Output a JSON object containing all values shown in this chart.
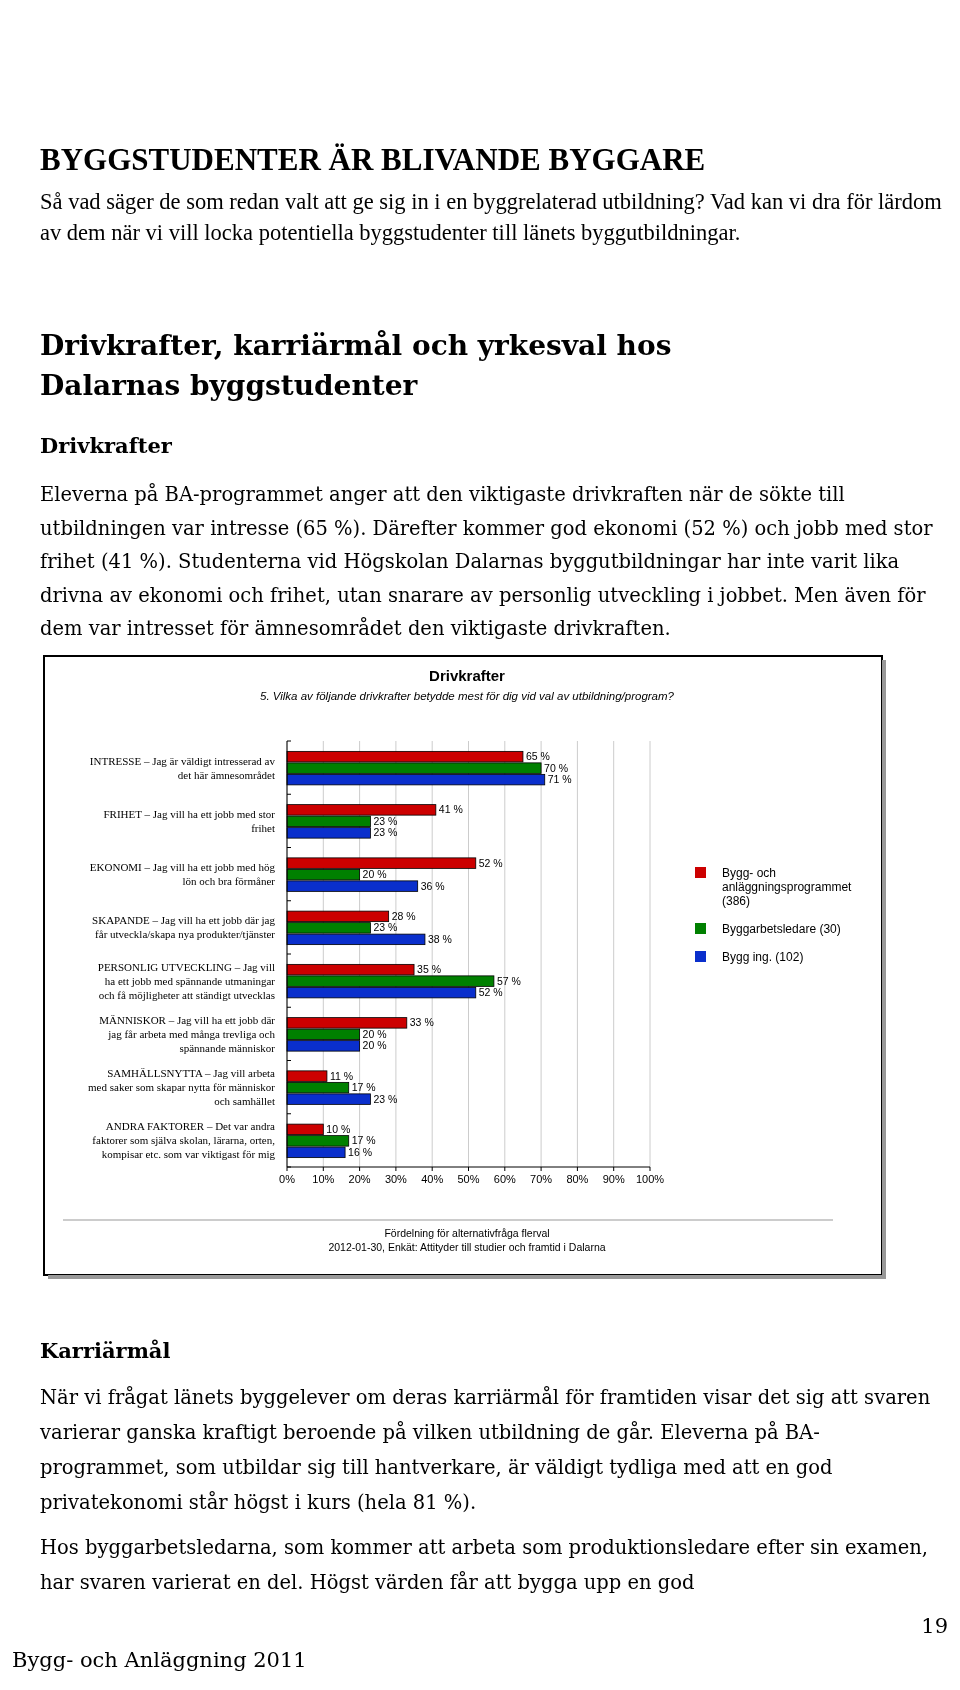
{
  "chart_data": {
    "type": "bar",
    "orientation": "horizontal",
    "title": "Drivkrafter",
    "subtitle": "5. Vilka av följande drivkrafter betydde mest för dig vid val av utbildning/program?",
    "categories": [
      "INTRESSE – Jag är väldigt intresserad av det här ämnesområdet",
      "FRIHET – Jag vill ha ett jobb med stor frihet",
      "EKONOMI – Jag vill ha ett jobb med hög lön och bra förmåner",
      "SKAPANDE – Jag vill ha ett jobb där jag får utveckla/skapa nya produkter/tjänster",
      "PERSONLIG UTVECKLING – Jag vill ha ett jobb med spännande utmaningar och få möjligheter att ständigt utvecklas",
      "MÄNNISKOR – Jag vill ha ett jobb där jag får arbeta med många trevliga och spännande människor",
      "SAMHÄLLSNYTTA – Jag vill arbeta med saker som skapar nytta för människor och samhället",
      "ANDRA FAKTORER – Det var andra faktorer som själva skolan, lärarna, orten, kompisar etc. som var viktigast för mig"
    ],
    "series": [
      {
        "name": "Bygg- och anläggningsprogrammet (386)",
        "color": "#cc0000",
        "values": [
          65,
          41,
          52,
          28,
          35,
          33,
          11,
          10
        ],
        "value_labels": [
          "65 %",
          "41 %",
          "52 %",
          "28 %",
          "35 %",
          "33 %",
          "11 %",
          "10 %"
        ]
      },
      {
        "name": "Byggarbetsledare (30)",
        "color": "#008000",
        "values": [
          70,
          23,
          20,
          23,
          57,
          20,
          17,
          17
        ],
        "value_labels": [
          "70 %",
          "23 %",
          "20 %",
          "23 %",
          "57 %",
          "20 %",
          "17 %",
          "17 %"
        ]
      },
      {
        "name": "Bygg ing. (102)",
        "color": "#0a2fcc",
        "values": [
          71,
          23,
          36,
          38,
          52,
          20,
          23,
          16
        ],
        "value_labels": [
          "71 %",
          "23 %",
          "36 %",
          "38 %",
          "52 %",
          "20 %",
          "23 %",
          "16 %"
        ]
      }
    ],
    "xlim": [
      0,
      100
    ],
    "xticks": [
      {
        "value": 0,
        "label": "0%"
      },
      {
        "value": 10,
        "label": "10%"
      },
      {
        "value": 20,
        "label": "20%"
      },
      {
        "value": 30,
        "label": "30%"
      },
      {
        "value": 40,
        "label": "40%"
      },
      {
        "value": 50,
        "label": "50%"
      },
      {
        "value": 60,
        "label": "60%"
      },
      {
        "value": 70,
        "label": "70%"
      },
      {
        "value": 80,
        "label": "80%"
      },
      {
        "value": 90,
        "label": "90%"
      },
      {
        "value": 100,
        "label": "100%"
      }
    ],
    "grid": "x",
    "legend": "right",
    "annotations": [
      "BYGGSTUDENTER ÄR BLIVANDE BYGGARE",
      "Så vad säger de som redan valt att ge sig in i en byggrelaterad utbildning? Vad kan vi dra för lärdom av dem när vi vill locka potentiella byggstudenter till länets byggutbildningar.",
      "Drivkrafter, karriärmål och yrkesval hos Dalarnas byggstudenter",
      "Drivkrafter",
      "Eleverna på BA-programmet anger att den viktigaste drivkraften när de sökte till utbildningen var intresse (65 %). Därefter kommer god ekonomi (52 %) och jobb med stor frihet (41 %). Studenterna vid Högskolan Dalarnas byggutbildningar har inte varit lika drivna av ekonomi och frihet, utan snarare av personlig utveckling i jobbet. Men även för dem var intresset för ämnesområdet den viktigaste drivkraften.",
      "Fördelning för alternativfråga flerval",
      "2012-01-30, Enkät: Attityder till studier och framtid i Dalarna",
      "Karriärmål",
      "När vi frågat länets byggelever om deras karriärmål för framtiden visar det sig att svaren varierar ganska kraftigt beroende på vilken utbildning de går. Eleverna på BA-programmet, som utbildar sig till hantverkare, är väldigt tydliga med att en god privatekonomi står högst i kurs (hela 81 %).",
      "Hos byggarbetsledarna, som kommer att arbeta som produktionsledare efter sin examen, har svaren varierat en del. Högst värden får att bygga upp en god",
      "19",
      "Bygg- och Anläggning 2011"
    ]
  }
}
